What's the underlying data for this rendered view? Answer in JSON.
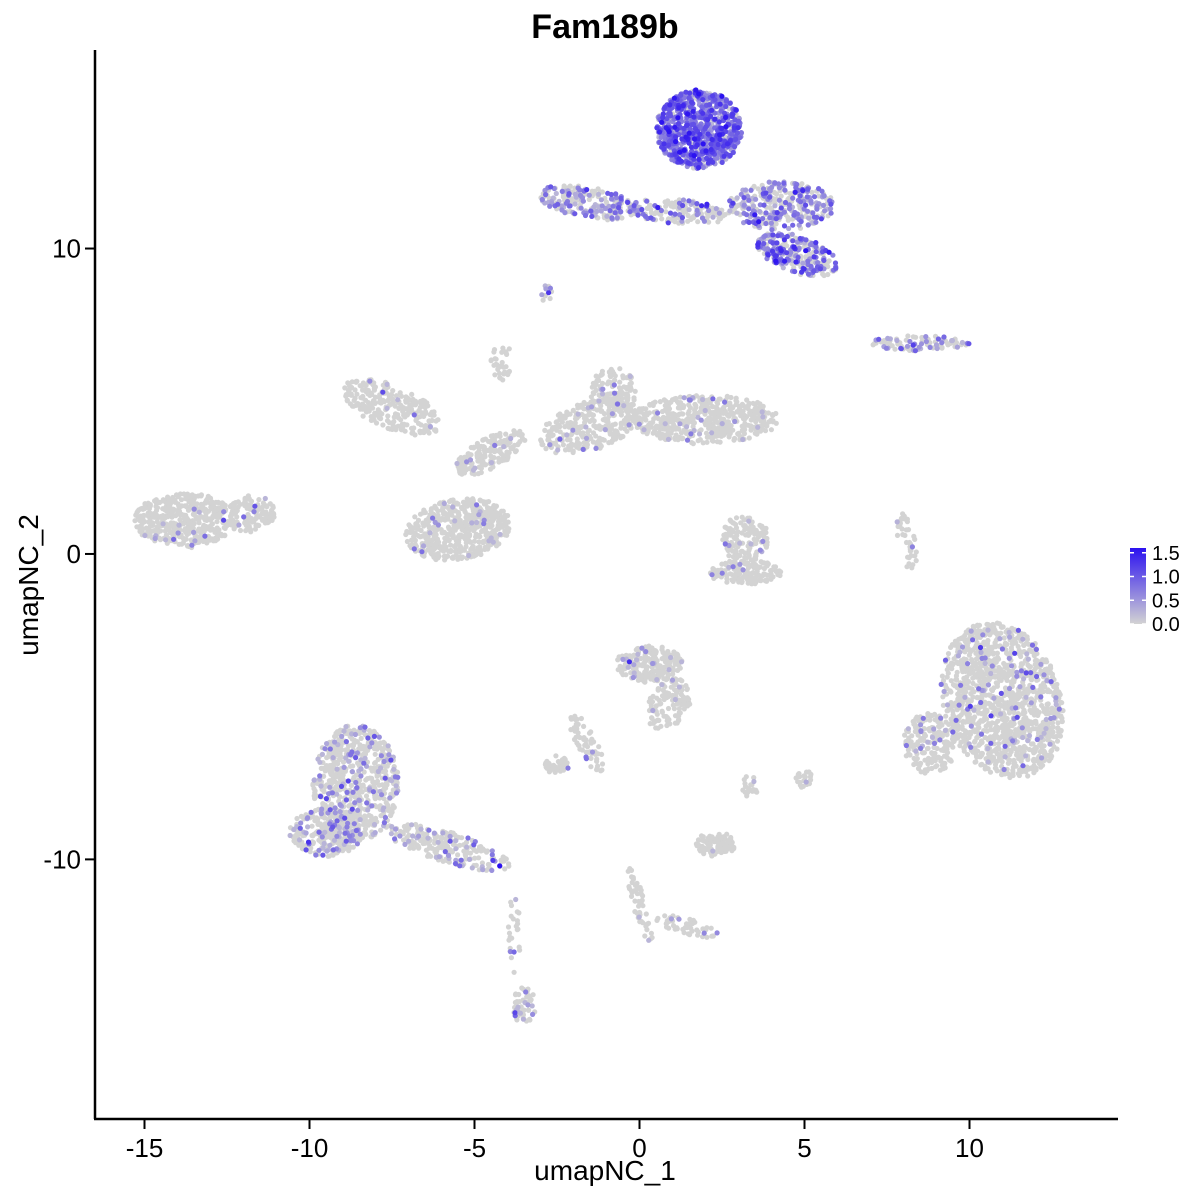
{
  "chart_data": {
    "type": "scatter",
    "title": "Fam189b",
    "xlabel": "umapNC_1",
    "ylabel": "umapNC_2",
    "xlim": [
      -16.5,
      14.5
    ],
    "ylim": [
      -18.5,
      16.5
    ],
    "x_ticks": [
      -15,
      -10,
      -5,
      0,
      5,
      10
    ],
    "y_ticks": [
      -10,
      0,
      10
    ],
    "x_tick_labels": [
      "-15",
      "-10",
      "-5",
      "0",
      "5",
      "10"
    ],
    "y_tick_labels": [
      "-10",
      "0",
      "10"
    ],
    "grid": false,
    "legend": {
      "placement": "right",
      "type": "colorbar",
      "min": 0.0,
      "max": 1.6,
      "breaks": [
        0.0,
        0.5,
        1.0,
        1.5
      ],
      "labels": [
        "0.0",
        "0.5",
        "1.0",
        "1.5"
      ],
      "low_color": "#d3d3d3",
      "high_color": "#2c12f0"
    },
    "clusters": [
      {
        "cx": 1.8,
        "cy": 13.9,
        "rx": 1.3,
        "ry": 1.3,
        "angle": 0,
        "n": 900,
        "expr_frac": 0.85,
        "expr_mean": 0.8
      },
      {
        "cx": -1.5,
        "cy": 11.5,
        "rx": 1.6,
        "ry": 0.5,
        "angle": -10,
        "n": 220,
        "expr_frac": 0.45,
        "expr_mean": 0.6
      },
      {
        "cx": 1.2,
        "cy": 11.2,
        "rx": 1.6,
        "ry": 0.4,
        "angle": -5,
        "n": 160,
        "expr_frac": 0.35,
        "expr_mean": 0.6
      },
      {
        "cx": 4.3,
        "cy": 11.4,
        "rx": 1.6,
        "ry": 0.8,
        "angle": 0,
        "n": 320,
        "expr_frac": 0.55,
        "expr_mean": 0.6
      },
      {
        "cx": 4.8,
        "cy": 9.8,
        "rx": 1.3,
        "ry": 0.6,
        "angle": -20,
        "n": 260,
        "expr_frac": 0.6,
        "expr_mean": 0.8
      },
      {
        "cx": 8.5,
        "cy": 6.9,
        "rx": 1.5,
        "ry": 0.25,
        "angle": 0,
        "n": 90,
        "expr_frac": 0.4,
        "expr_mean": 0.5
      },
      {
        "cx": -13.8,
        "cy": 1.1,
        "rx": 1.5,
        "ry": 0.9,
        "angle": 0,
        "n": 450,
        "expr_frac": 0.03,
        "expr_mean": 0.4
      },
      {
        "cx": -11.8,
        "cy": 1.3,
        "rx": 0.8,
        "ry": 0.6,
        "angle": 20,
        "n": 120,
        "expr_frac": 0.03,
        "expr_mean": 0.4
      },
      {
        "cx": -7.5,
        "cy": 4.8,
        "rx": 1.6,
        "ry": 0.7,
        "angle": -25,
        "n": 260,
        "expr_frac": 0.05,
        "expr_mean": 0.4
      },
      {
        "cx": -5.5,
        "cy": 0.8,
        "rx": 1.6,
        "ry": 1.0,
        "angle": 10,
        "n": 520,
        "expr_frac": 0.05,
        "expr_mean": 0.4
      },
      {
        "cx": -4.5,
        "cy": 3.3,
        "rx": 1.2,
        "ry": 0.5,
        "angle": 30,
        "n": 180,
        "expr_frac": 0.05,
        "expr_mean": 0.4
      },
      {
        "cx": -1.5,
        "cy": 4.2,
        "rx": 1.6,
        "ry": 0.8,
        "angle": 20,
        "n": 300,
        "expr_frac": 0.05,
        "expr_mean": 0.4
      },
      {
        "cx": 2.0,
        "cy": 4.4,
        "rx": 2.2,
        "ry": 0.8,
        "angle": 0,
        "n": 500,
        "expr_frac": 0.06,
        "expr_mean": 0.4
      },
      {
        "cx": -0.8,
        "cy": 5.3,
        "rx": 0.7,
        "ry": 0.8,
        "angle": 0,
        "n": 120,
        "expr_frac": 0.05,
        "expr_mean": 0.4
      },
      {
        "cx": -4.2,
        "cy": 6.3,
        "rx": 0.3,
        "ry": 0.8,
        "angle": 0,
        "n": 30,
        "expr_frac": 0.05,
        "expr_mean": 0.4
      },
      {
        "cx": 3.2,
        "cy": 0.5,
        "rx": 0.7,
        "ry": 0.8,
        "angle": 0,
        "n": 140,
        "expr_frac": 0.04,
        "expr_mean": 0.4
      },
      {
        "cx": 3.2,
        "cy": -0.6,
        "rx": 1.1,
        "ry": 0.4,
        "angle": 0,
        "n": 150,
        "expr_frac": 0.03,
        "expr_mean": 0.4
      },
      {
        "cx": 11.0,
        "cy": -4.8,
        "rx": 1.8,
        "ry": 2.6,
        "angle": 15,
        "n": 1300,
        "expr_frac": 0.08,
        "expr_mean": 0.5
      },
      {
        "cx": 8.8,
        "cy": -6.2,
        "rx": 0.8,
        "ry": 1.0,
        "angle": 0,
        "n": 200,
        "expr_frac": 0.08,
        "expr_mean": 0.5
      },
      {
        "cx": 8.1,
        "cy": 0.4,
        "rx": 0.25,
        "ry": 1.0,
        "angle": 10,
        "n": 40,
        "expr_frac": 0.05,
        "expr_mean": 0.4
      },
      {
        "cx": -8.6,
        "cy": -7.5,
        "rx": 1.3,
        "ry": 1.9,
        "angle": 0,
        "n": 650,
        "expr_frac": 0.2,
        "expr_mean": 0.5
      },
      {
        "cx": -9.5,
        "cy": -9.1,
        "rx": 1.1,
        "ry": 0.8,
        "angle": 0,
        "n": 250,
        "expr_frac": 0.2,
        "expr_mean": 0.5
      },
      {
        "cx": -5.8,
        "cy": -9.6,
        "rx": 2.0,
        "ry": 0.5,
        "angle": -18,
        "n": 220,
        "expr_frac": 0.25,
        "expr_mean": 0.5
      },
      {
        "cx": -3.5,
        "cy": -14.8,
        "rx": 0.35,
        "ry": 0.6,
        "angle": 0,
        "n": 50,
        "expr_frac": 0.2,
        "expr_mean": 0.5
      },
      {
        "cx": -3.8,
        "cy": -12.5,
        "rx": 0.2,
        "ry": 1.3,
        "angle": 0,
        "n": 25,
        "expr_frac": 0.1,
        "expr_mean": 0.4
      },
      {
        "cx": 0.3,
        "cy": -3.6,
        "rx": 1.0,
        "ry": 0.6,
        "angle": 0,
        "n": 230,
        "expr_frac": 0.06,
        "expr_mean": 0.4
      },
      {
        "cx": 0.9,
        "cy": -4.9,
        "rx": 0.6,
        "ry": 0.9,
        "angle": -30,
        "n": 120,
        "expr_frac": 0.06,
        "expr_mean": 0.4
      },
      {
        "cx": -1.6,
        "cy": -6.2,
        "rx": 0.3,
        "ry": 1.1,
        "angle": 25,
        "n": 60,
        "expr_frac": 0.04,
        "expr_mean": 0.4
      },
      {
        "cx": -2.5,
        "cy": -6.9,
        "rx": 0.4,
        "ry": 0.3,
        "angle": 0,
        "n": 40,
        "expr_frac": 0.06,
        "expr_mean": 0.4
      },
      {
        "cx": 2.3,
        "cy": -9.5,
        "rx": 0.6,
        "ry": 0.4,
        "angle": 0,
        "n": 100,
        "expr_frac": 0.04,
        "expr_mean": 0.4
      },
      {
        "cx": 0.0,
        "cy": -11.5,
        "rx": 0.2,
        "ry": 1.3,
        "angle": 15,
        "n": 50,
        "expr_frac": 0.04,
        "expr_mean": 0.4
      },
      {
        "cx": 1.5,
        "cy": -12.2,
        "rx": 1.1,
        "ry": 0.25,
        "angle": -15,
        "n": 50,
        "expr_frac": 0.04,
        "expr_mean": 0.4
      },
      {
        "cx": 5.0,
        "cy": -7.4,
        "rx": 0.3,
        "ry": 0.3,
        "angle": 0,
        "n": 20,
        "expr_frac": 0.03,
        "expr_mean": 0.4
      },
      {
        "cx": 3.4,
        "cy": -7.6,
        "rx": 0.3,
        "ry": 0.4,
        "angle": 0,
        "n": 20,
        "expr_frac": 0.03,
        "expr_mean": 0.4
      },
      {
        "cx": -2.8,
        "cy": 8.5,
        "rx": 0.2,
        "ry": 0.3,
        "angle": 0,
        "n": 12,
        "expr_frac": 0.3,
        "expr_mean": 0.5
      }
    ]
  }
}
